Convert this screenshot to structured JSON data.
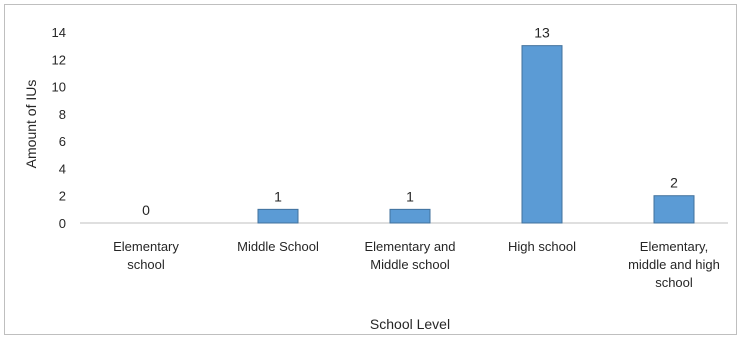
{
  "chart_data": {
    "type": "bar",
    "categories": [
      [
        "Elementary",
        "school"
      ],
      [
        "Middle School"
      ],
      [
        "Elementary and",
        "Middle school"
      ],
      [
        "High school"
      ],
      [
        "Elementary,",
        "middle and high",
        "school"
      ]
    ],
    "values": [
      0,
      1,
      1,
      13,
      2
    ],
    "data_labels": [
      "0",
      "1",
      "1",
      "13",
      "2"
    ],
    "xlabel": "School Level",
    "ylabel": "Amount of IUs",
    "ylim": [
      0,
      14
    ],
    "yticks": [
      0,
      2,
      4,
      6,
      8,
      10,
      12,
      14
    ],
    "grid": false,
    "legend": "none",
    "bar_color": "#5b9bd5",
    "bar_edge_color": "#41719c"
  }
}
